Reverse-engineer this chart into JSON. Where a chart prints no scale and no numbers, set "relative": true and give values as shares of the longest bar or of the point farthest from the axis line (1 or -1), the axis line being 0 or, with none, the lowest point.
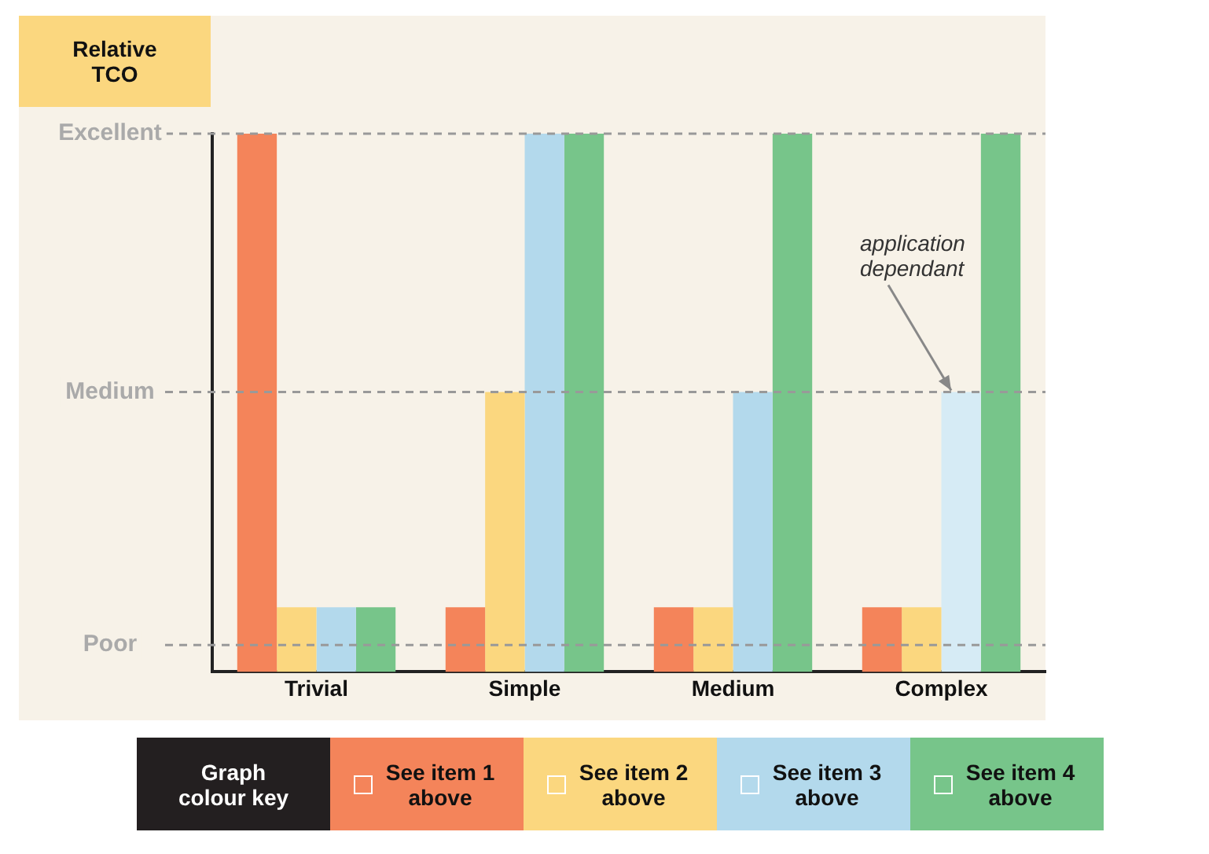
{
  "chart_data": {
    "type": "bar",
    "ylabel": "Relative TCO",
    "legend_title": "Graph colour key",
    "legend": "bottom",
    "relative": true,
    "categories": [
      "Trivial",
      "Simple",
      "Medium",
      "Complex"
    ],
    "ref_lines": [
      {
        "axis": "y",
        "value": 0.05,
        "label": "Poor",
        "line_style": "dashed",
        "color": "#999999"
      },
      {
        "axis": "y",
        "value": 0.52,
        "label": "Medium",
        "line_style": "dashed",
        "color": "#999999"
      },
      {
        "axis": "y",
        "value": 1,
        "label": "Excellent",
        "line_style": "dashed",
        "color": "#999999"
      }
    ],
    "series": [
      {
        "name": "See item 1 above",
        "color": "#f4845a",
        "values": [
          1,
          0.12,
          0.12,
          0.12
        ]
      },
      {
        "name": "See item 2 above",
        "color": "#fbd77f",
        "values": [
          0.12,
          0.52,
          0.12,
          0.12
        ]
      },
      {
        "name": "See item 3 above",
        "color": "#b3d9ec",
        "colors": [
          "#b3d9ec",
          "#b3d9ec",
          "#b3d9ec",
          "#d6ebf5"
        ],
        "values": [
          0.12,
          1,
          0.52,
          0.52
        ]
      },
      {
        "name": "See item 4 above",
        "color": "#77c58a",
        "values": [
          0.12,
          1,
          1,
          1
        ]
      }
    ],
    "annotations": [
      "application dependant"
    ]
  }
}
